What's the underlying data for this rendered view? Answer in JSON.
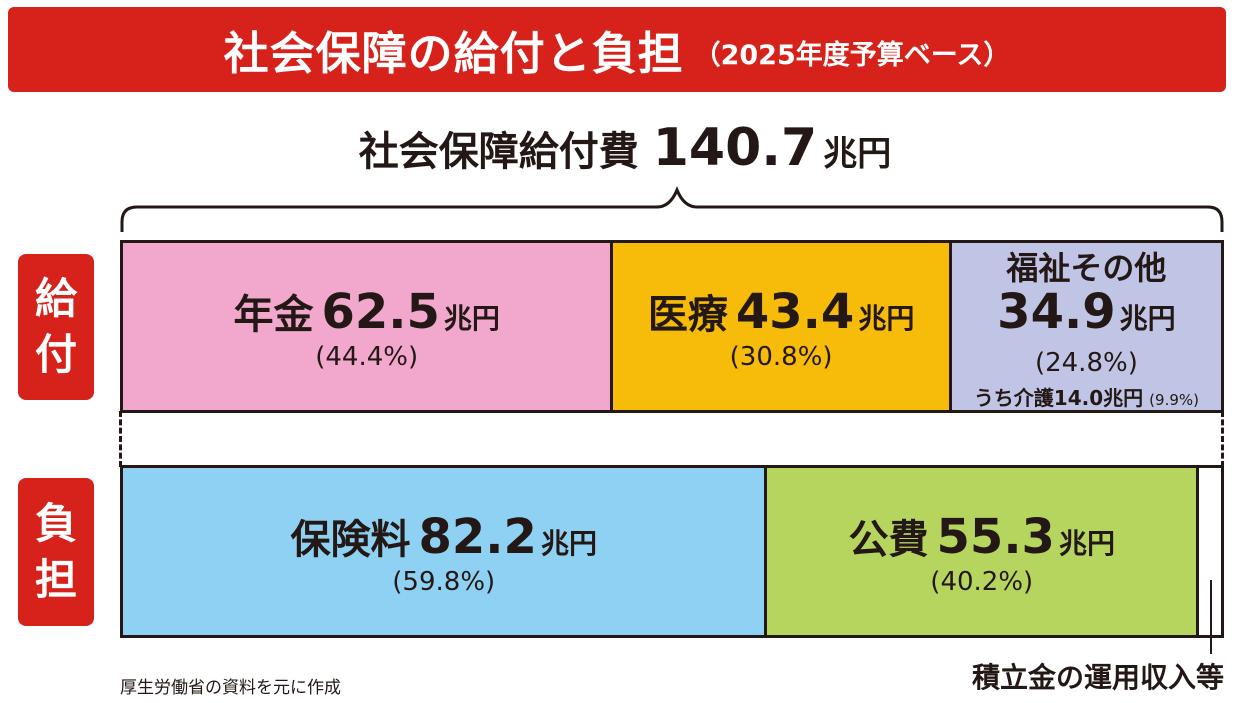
{
  "header": {
    "title": "社会保障の給付と負担",
    "subtitle": "（2025年度予算ベース）"
  },
  "total": {
    "label": "社会保障給付費",
    "value": "140.7",
    "unit": "兆円"
  },
  "side_labels": {
    "benefit": [
      "給",
      "付"
    ],
    "burden": [
      "負",
      "担"
    ]
  },
  "chart_data": {
    "type": "bar",
    "title": "社会保障の給付と負担",
    "subtitle": "（2025年度予算ベース）",
    "total_benefit": 140.7,
    "unit": "兆円",
    "benefit": [
      {
        "name": "年金",
        "value": 62.5,
        "value_text": "62.5",
        "unit": "兆円",
        "pct": "(44.4%)",
        "color": "#f2a7cc"
      },
      {
        "name": "医療",
        "value": 43.4,
        "value_text": "43.4",
        "unit": "兆円",
        "pct": "(30.8%)",
        "color": "#f7bc09"
      },
      {
        "name": "福祉その他",
        "value": 34.9,
        "value_text": "34.9",
        "unit": "兆円",
        "pct": "(24.8%)",
        "color": "#c0c5e6",
        "sub": {
          "text": "うち介護14.0兆円",
          "pct": "(9.9%)"
        }
      }
    ],
    "burden": [
      {
        "name": "保険料",
        "value": 82.2,
        "value_text": "82.2",
        "unit": "兆円",
        "pct": "(59.8%)",
        "color": "#8fd1f2"
      },
      {
        "name": "公費",
        "value": 55.3,
        "value_text": "55.3",
        "unit": "兆円",
        "pct": "(40.2%)",
        "color": "#b6d55f"
      },
      {
        "name": "積立金の運用収入等",
        "value": 3.2,
        "color": "#ffffff"
      }
    ]
  },
  "notes": {
    "source": "厚生労働省の資料を元に作成",
    "fund_label": "積立金の運用収入等"
  }
}
